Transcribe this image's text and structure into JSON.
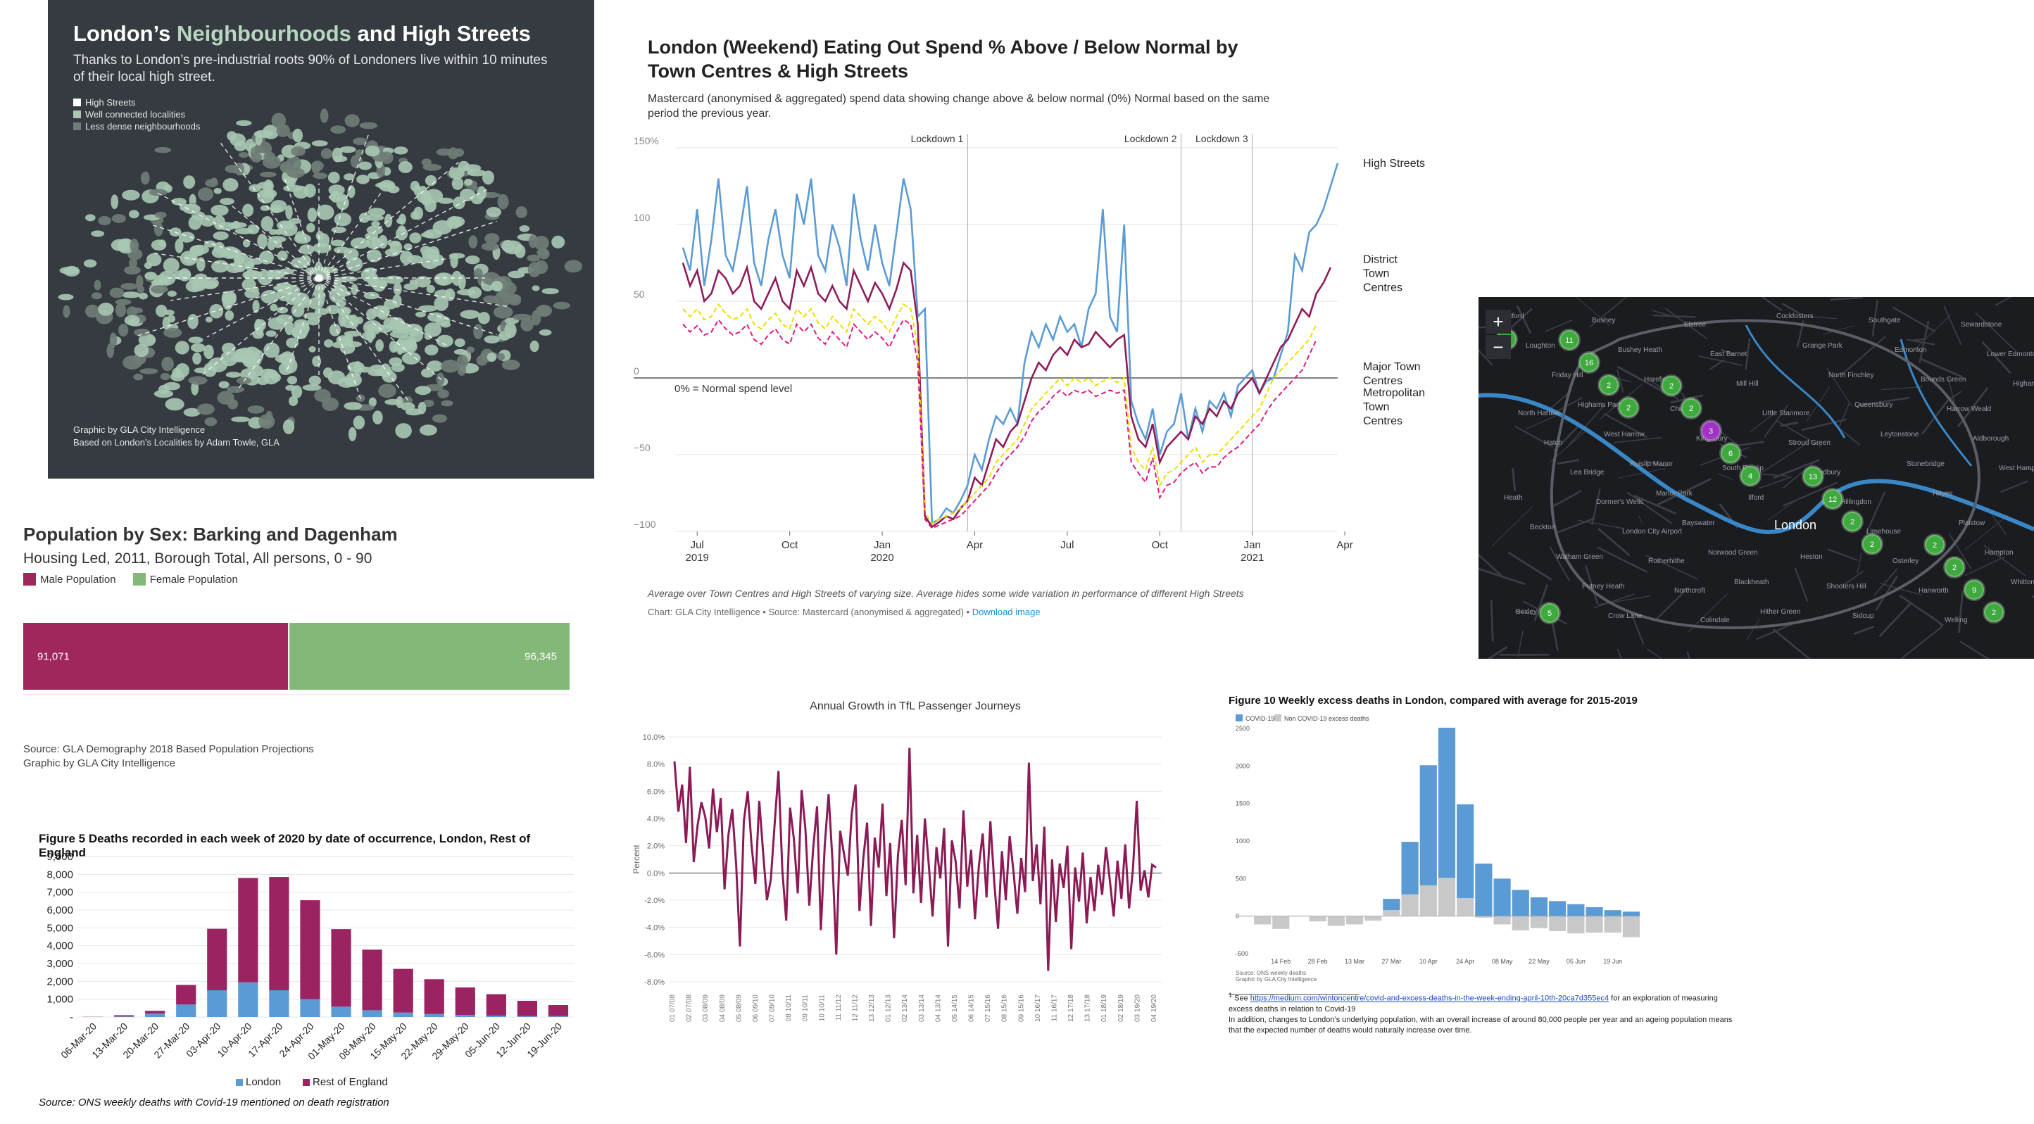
{
  "neighbourhoods": {
    "title_pre": "London’s ",
    "title_hl": "Neighbourhoods",
    "title_post": " and High Streets",
    "subtitle": "Thanks to London’s pre-industrial roots 90% of Londoners live within 10 minutes of their local high street.",
    "legend": [
      "High Streets",
      "Well connected localities",
      "Less dense neighbourhoods"
    ],
    "credit1": "Graphic by GLA City Intelligence",
    "credit2": "Based on London’s Localities by Adam Towle, GLA",
    "colors": {
      "bg": "#353b40",
      "high_street": "#ffffff",
      "connected": "#a9c8b2",
      "less_dense": "#6f7d77"
    }
  },
  "eating_out": {
    "title": "London (Weekend) Eating Out Spend % Above / Below Normal by Town Centres & High Streets",
    "subtitle": "Mastercard (anonymised & aggregated) spend data showing change above & below normal (0%) Normal based on the same period the previous year.",
    "note": "Average over Town Centres and High Streets of varying size. Average hides some wide variation in performance of different High Streets",
    "source": "Chart: GLA City Intelligence • Source: Mastercard (anonymised & aggregated) • ",
    "download": "Download image",
    "baseline_label": "0% = Normal spend level"
  },
  "map": {
    "zoom_in": "+",
    "zoom_out": "−",
    "labels": [
      "Watford",
      "Bushey",
      "Elstree",
      "Cockfosters",
      "Southgate",
      "Sewardstone",
      "Loughton",
      "Bushey Heath",
      "East Barnet",
      "Grange Park",
      "Edmonton",
      "Lower Edmonton",
      "Friday Hill",
      "Harefield",
      "Mill Hill",
      "North Finchley",
      "Bounds Green",
      "Higham Hill",
      "Highams Park",
      "Chingford",
      "Little Stanmore",
      "Queensbury",
      "Harrow Weald",
      "North Harrow",
      "West Harrow",
      "Kingsbury",
      "Stroud Green",
      "Leytonstone",
      "Aldborough",
      "Hatch",
      "Ruislip Manor",
      "South Ruislip",
      "Sudbury",
      "Stonebridge",
      "West Hampstead",
      "Lea Bridge",
      "Manor Park",
      "Ilford",
      "Hillingdon",
      "Hayes",
      "Heath",
      "Dormer's Wells",
      "Bayswater",
      "London",
      "Limehouse",
      "Plaistow",
      "Beckton",
      "London City Airport",
      "Norwood Green",
      "Heston",
      "Osterley",
      "Hampton",
      "Walham Green",
      "Rotherhithe",
      "Blackheath",
      "Shooters Hill",
      "Hanworth",
      "Whitton",
      "Putney Heath",
      "Northcroft",
      "Hither Green",
      "Sidcup",
      "Welling",
      "Bexley",
      "Crow Lane",
      "Colindale"
    ],
    "clusters": [
      "2",
      "2",
      "4",
      "2",
      "2",
      "2",
      "6",
      "2",
      "9",
      "16",
      "3",
      "12",
      "2",
      "11",
      "2",
      "13",
      "2",
      "5",
      "2"
    ]
  },
  "population": {
    "title": "Population by Sex: Barking and Dagenham",
    "subtitle": "Housing Led, 2011, Borough Total, All persons, 0 - 90",
    "legend_male": "Male Population",
    "legend_female": "Female Population",
    "male": 91071,
    "female": 96345,
    "male_label": "91,071",
    "female_label": "96,345",
    "source1": "Source: GLA Demography 2018 Based Population Projections",
    "source2": "Graphic by GLA City Intelligence",
    "colors": {
      "male": "#a0275c",
      "female": "#84b879"
    }
  },
  "deaths": {
    "title": "Figure 5 Deaths recorded in each week of 2020 by date of occurrence, London, Rest of England",
    "source": "Source: ONS weekly deaths with Covid-19 mentioned on death registration",
    "legend": [
      "London",
      "Rest of England"
    ],
    "colors": {
      "london": "#5b9bd5",
      "rest": "#9b2362"
    }
  },
  "tfl": {
    "title": "Annual Growth in TfL Passenger Journeys",
    "ylabel": "Percent",
    "colors": {
      "line": "#8b1a55"
    }
  },
  "excess": {
    "title": "Figure 10 Weekly excess deaths in London, compared with average for 2015-2019",
    "legend": [
      "COVID-19",
      "Non COVID-19 excess deaths"
    ],
    "source1": "Source: ONS weekly deaths",
    "source2": "Graphic by GLA City Intelligence",
    "foot_marker": "1",
    "foot_pre": " See ",
    "foot_url": "https://medium.com/wintoncentre/covid-and-excess-deaths-in-the-week-ending-april-10th-20ca7d355ec4",
    "foot_post": " for an exploration of measuring excess deaths in relation to Covid-19",
    "foot2": "In addition, changes to London’s underlying population, with an overall increase of around 80,000 people per year and an ageing population means that the expected number of deaths would naturally increase over time.",
    "colors": {
      "covid": "#5b9bd5",
      "non_covid": "#c8c8c8"
    }
  },
  "chart_data": [
    {
      "id": "eating_out",
      "type": "line",
      "title": "London (Weekend) Eating Out Spend % Above / Below Normal by Town Centres & High Streets",
      "xlabel": "",
      "ylabel": "",
      "ylim": [
        -100,
        150
      ],
      "yticks": [
        "150%",
        "100",
        "50",
        "0",
        "−50",
        "−100"
      ],
      "ytick_values": [
        150,
        100,
        50,
        0,
        -50,
        -100
      ],
      "xticks": [
        "Jul\n2019",
        "Oct",
        "Jan\n2020",
        "Apr",
        "Jul",
        "Oct",
        "Jan\n2021",
        "Apr"
      ],
      "xtick_index": [
        2,
        15,
        28,
        41,
        54,
        67,
        80,
        93
      ],
      "annotations": [
        {
          "label": "Lockdown 1",
          "index": 40
        },
        {
          "label": "Lockdown 2",
          "index": 70
        },
        {
          "label": "Lockdown 3",
          "index": 80
        }
      ],
      "series": [
        {
          "name": "High Streets",
          "color": "#5b9bd5",
          "dash": false,
          "values": [
            85,
            70,
            110,
            60,
            90,
            130,
            80,
            70,
            95,
            125,
            75,
            60,
            90,
            110,
            80,
            65,
            120,
            100,
            130,
            80,
            70,
            100,
            85,
            60,
            120,
            90,
            70,
            100,
            75,
            60,
            95,
            130,
            110,
            40,
            45,
            -95,
            -92,
            -85,
            -88,
            -80,
            -70,
            -50,
            -60,
            -40,
            -25,
            -30,
            -20,
            -30,
            10,
            30,
            20,
            35,
            25,
            40,
            30,
            35,
            20,
            45,
            55,
            110,
            40,
            30,
            100,
            -15,
            -30,
            -40,
            -20,
            -50,
            -35,
            -30,
            -10,
            -40,
            -20,
            -35,
            -15,
            -20,
            -10,
            -25,
            -5,
            0,
            5,
            -10,
            -2,
            0,
            15,
            30,
            80,
            70,
            95,
            100,
            110,
            125,
            140
          ]
        },
        {
          "name": "District Town Centres",
          "color": "#8e1c5b",
          "dash": false,
          "values": [
            75,
            60,
            70,
            50,
            55,
            70,
            65,
            55,
            60,
            72,
            50,
            45,
            55,
            65,
            50,
            45,
            70,
            60,
            72,
            55,
            50,
            60,
            50,
            45,
            70,
            60,
            50,
            62,
            55,
            45,
            58,
            75,
            70,
            35,
            -90,
            -97,
            -94,
            -90,
            -92,
            -85,
            -80,
            -65,
            -70,
            -55,
            -40,
            -45,
            -35,
            -30,
            -15,
            0,
            10,
            5,
            15,
            20,
            15,
            25,
            20,
            22,
            30,
            25,
            20,
            25,
            28,
            -25,
            -40,
            -45,
            -30,
            -55,
            -45,
            -40,
            -35,
            -40,
            -25,
            -30,
            -20,
            -25,
            -15,
            -20,
            -10,
            -5,
            0,
            -10,
            0,
            10,
            20,
            25,
            35,
            45,
            40,
            55,
            62,
            72
          ]
        },
        {
          "name": "Major Town Centres",
          "color": "#e8df00",
          "dash": true,
          "values": [
            45,
            40,
            45,
            38,
            40,
            48,
            42,
            38,
            40,
            45,
            35,
            32,
            38,
            42,
            35,
            32,
            45,
            40,
            45,
            36,
            32,
            40,
            35,
            30,
            45,
            40,
            35,
            40,
            36,
            30,
            40,
            48,
            45,
            20,
            -88,
            -95,
            -92,
            -90,
            -88,
            -85,
            -80,
            -75,
            -70,
            -65,
            -55,
            -50,
            -45,
            -40,
            -30,
            -20,
            -15,
            -10,
            -5,
            0,
            -5,
            0,
            -3,
            0,
            -5,
            -2,
            0,
            -3,
            0,
            -45,
            -55,
            -60,
            -45,
            -70,
            -62,
            -60,
            -55,
            -50,
            -45,
            -55,
            -50,
            -50,
            -45,
            -40,
            -35,
            -30,
            -25,
            -20,
            -10,
            0,
            5,
            10,
            15,
            20,
            25,
            35
          ]
        },
        {
          "name": "Metropolitan Town Centres",
          "color": "#e0197d",
          "dash": true,
          "values": [
            35,
            30,
            34,
            28,
            30,
            38,
            32,
            28,
            30,
            35,
            25,
            22,
            28,
            32,
            25,
            22,
            35,
            30,
            35,
            26,
            22,
            30,
            25,
            20,
            35,
            30,
            25,
            30,
            26,
            20,
            30,
            38,
            35,
            10,
            -92,
            -98,
            -96,
            -94,
            -92,
            -90,
            -85,
            -80,
            -75,
            -70,
            -62,
            -55,
            -50,
            -45,
            -38,
            -28,
            -22,
            -18,
            -12,
            -8,
            -12,
            -8,
            -10,
            -8,
            -12,
            -10,
            -8,
            -10,
            -8,
            -55,
            -62,
            -68,
            -52,
            -78,
            -70,
            -68,
            -62,
            -58,
            -55,
            -62,
            -58,
            -58,
            -52,
            -48,
            -45,
            -40,
            -35,
            -30,
            -22,
            -15,
            -10,
            -5,
            0,
            5,
            15,
            25
          ]
        }
      ]
    },
    {
      "id": "population",
      "type": "bar",
      "title": "Population by Sex: Barking and Dagenham",
      "categories": [
        "Male Population",
        "Female Population"
      ],
      "values": [
        91071,
        96345
      ],
      "orientation": "horizontal-stacked"
    },
    {
      "id": "deaths_by_week",
      "type": "bar",
      "title": "Figure 5 Deaths recorded in each week of 2020 by date of occurrence, London, Rest of England",
      "categories": [
        "06-Mar-20",
        "13-Mar-20",
        "20-Mar-20",
        "27-Mar-20",
        "03-Apr-20",
        "10-Apr-20",
        "17-Apr-20",
        "24-Apr-20",
        "01-May-20",
        "08-May-20",
        "15-May-20",
        "22-May-20",
        "29-May-20",
        "05-Jun-20",
        "12-Jun-20",
        "19-Jun-20"
      ],
      "yticks": [
        "9,000",
        "8,000",
        "7,000",
        "6,000",
        "5,000",
        "4,000",
        "3,000",
        "2,000",
        "1,000",
        "-"
      ],
      "ytick_values": [
        9000,
        8000,
        7000,
        6000,
        5000,
        4000,
        3000,
        2000,
        1000,
        0
      ],
      "ylim": [
        0,
        9000
      ],
      "series": [
        {
          "name": "London",
          "values": [
            5,
            30,
            200,
            700,
            1500,
            1950,
            1500,
            1000,
            580,
            380,
            250,
            170,
            110,
            80,
            60,
            50
          ]
        },
        {
          "name": "Rest of England",
          "values": [
            10,
            70,
            150,
            1100,
            3450,
            5850,
            6350,
            5550,
            4350,
            3400,
            2450,
            1950,
            1550,
            1200,
            850,
            620
          ]
        }
      ]
    },
    {
      "id": "tfl_growth",
      "type": "line",
      "title": "Annual Growth in TfL Passenger Journeys",
      "ylabel": "Percent",
      "ylim": [
        -8,
        10
      ],
      "yticks": [
        "10.0%",
        "8.0%",
        "6.0%",
        "4.0%",
        "2.0%",
        "0.0%",
        "-2.0%",
        "-4.0%",
        "-6.0%",
        "-8.0%"
      ],
      "ytick_values": [
        10,
        8,
        6,
        4,
        2,
        0,
        -2,
        -4,
        -6,
        -8
      ],
      "xticks": [
        "01 07/08",
        "02 07/08",
        "03 08/09",
        "04 08/09",
        "05 08/09",
        "06 09/10",
        "07 09/10",
        "08 10/11",
        "09 10/11",
        "10 10/11",
        "11 11/12",
        "12 11/12",
        "13 12/13",
        "01 12/13",
        "02 13/14",
        "03 13/14",
        "04 13/14",
        "05 14/15",
        "06 14/15",
        "07 15/16",
        "08 15/16",
        "09 15/16",
        "10 16/17",
        "11 16/17",
        "12 17/18",
        "13 17/18",
        "01 18/19",
        "02 18/19",
        "03 19/20",
        "04 19/20"
      ],
      "series": [
        {
          "name": "Growth",
          "values": [
            8.2,
            4.5,
            6.5,
            2.2,
            7.8,
            0.8,
            3.5,
            5.2,
            4.1,
            1.8,
            6.2,
            3.0,
            5.5,
            -1.2,
            2.8,
            4.7,
            0.6,
            -5.4,
            3.8,
            6.0,
            2.1,
            -0.8,
            5.3,
            1.5,
            -2.0,
            -0.5,
            3.6,
            7.5,
            0.2,
            -3.5,
            4.8,
            2.5,
            -1.5,
            6.1,
            3.2,
            -2.4,
            1.8,
            4.9,
            -4.2,
            2.0,
            5.8,
            0.9,
            -6.0,
            3.1,
            1.4,
            -0.2,
            4.3,
            6.5,
            -2.8,
            1.0,
            3.7,
            -3.9,
            2.6,
            0.4,
            5.1,
            -1.7,
            2.2,
            -4.8,
            1.3,
            3.9,
            -0.9,
            9.2,
            -1.5,
            2.8,
            -2.2,
            4.0,
            0.6,
            -3.2,
            1.9,
            -0.4,
            3.3,
            -5.4,
            2.4,
            0.8,
            -2.6,
            4.6,
            -1.0,
            1.7,
            -3.4,
            0.5,
            2.9,
            -1.8,
            3.8,
            -0.7,
            -4.1,
            1.6,
            -2.0,
            2.7,
            0.1,
            -3.0,
            1.1,
            -1.4,
            8.1,
            -0.6,
            2.1,
            -2.3,
            3.4,
            -7.2,
            1.0,
            -3.6,
            0.7,
            -1.1,
            2.0,
            -5.6,
            0.4,
            -2.1,
            1.5,
            -3.7,
            -0.3,
            -2.8,
            0.6,
            -1.6,
            1.9,
            -0.5,
            -3.2,
            0.9,
            -1.9,
            2.1,
            -2.6,
            0.3,
            5.3,
            -1.3,
            0.2,
            -1.8,
            0.6,
            0.4
          ]
        }
      ]
    },
    {
      "id": "excess_deaths",
      "type": "bar",
      "title": "Figure 10 Weekly excess deaths in London, compared with average for 2015-2019",
      "yticks": [
        "2500",
        "2000",
        "1500",
        "1000",
        "500",
        "0",
        "-500"
      ],
      "ytick_values": [
        2500,
        2000,
        1500,
        1000,
        500,
        0,
        -500
      ],
      "ylim": [
        -500,
        2500
      ],
      "xticks": [
        "14 Feb",
        "28 Feb",
        "13 Mar",
        "27 Mar",
        "10 Apr",
        "24 Apr",
        "08 May",
        "22 May",
        "05 Jun",
        "19 Jun"
      ],
      "xtick_index": [
        1,
        3,
        5,
        7,
        9,
        11,
        13,
        15,
        17,
        19
      ],
      "series": [
        {
          "name": "COVID-19",
          "values": [
            0,
            0,
            0,
            0,
            0,
            0,
            0,
            150,
            700,
            1600,
            2000,
            1250,
            700,
            500,
            350,
            250,
            200,
            160,
            120,
            80,
            60
          ]
        },
        {
          "name": "Non COVID-19 excess deaths",
          "values": [
            -110,
            -170,
            0,
            -70,
            -130,
            -110,
            -60,
            80,
            290,
            410,
            510,
            240,
            -20,
            -110,
            -190,
            -160,
            -200,
            -230,
            -220,
            -220,
            -280
          ]
        }
      ]
    }
  ]
}
